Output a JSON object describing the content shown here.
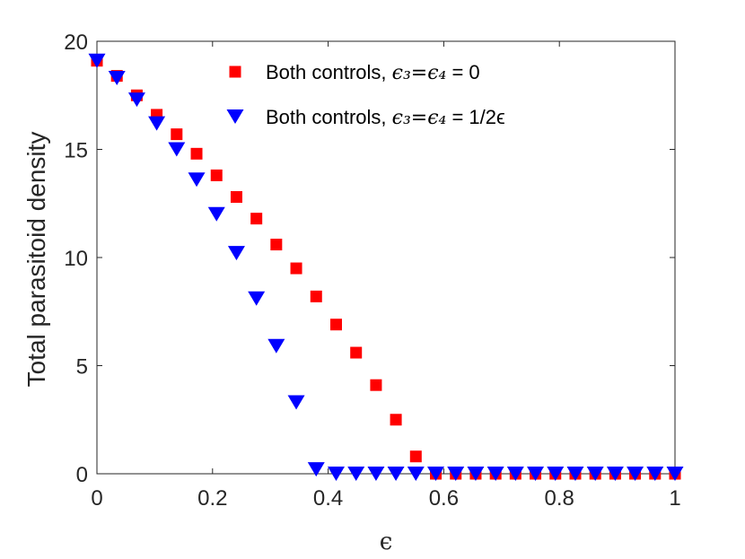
{
  "chart_data": {
    "type": "scatter",
    "xlabel": "ϵ",
    "ylabel": "Total parasitoid density",
    "xlim": [
      0,
      1
    ],
    "ylim": [
      0,
      20
    ],
    "xticks": [
      "0",
      "0.2",
      "0.4",
      "0.6",
      "0.8",
      "1"
    ],
    "yticks": [
      "0",
      "5",
      "10",
      "15",
      "20"
    ],
    "grid": false,
    "legend_position": "top-right",
    "series": [
      {
        "name": "Both controls, ϵ3=ϵ4 = 0",
        "legend_prefix": "Both controls, ",
        "legend_math": "ϵ₃=ϵ₄",
        "legend_suffix": " = 0",
        "marker": "square",
        "color": "#ff0000",
        "x": [
          0,
          0.0345,
          0.069,
          0.1034,
          0.1379,
          0.1724,
          0.2069,
          0.2414,
          0.2759,
          0.3103,
          0.3448,
          0.3793,
          0.4138,
          0.4483,
          0.4828,
          0.5172,
          0.5517,
          0.5862,
          0.6207,
          0.6552,
          0.6897,
          0.7241,
          0.7586,
          0.7931,
          0.8276,
          0.8621,
          0.8966,
          0.931,
          0.9655,
          1.0
        ],
        "y": [
          19.1,
          18.4,
          17.5,
          16.6,
          15.7,
          14.8,
          13.8,
          12.8,
          11.8,
          10.6,
          9.5,
          8.2,
          6.9,
          5.6,
          4.1,
          2.5,
          0.8,
          0,
          0,
          0,
          0,
          0,
          0,
          0,
          0,
          0,
          0,
          0,
          0,
          0
        ]
      },
      {
        "name": "Both controls, ϵ3=ϵ4 = 1/2ϵ",
        "legend_prefix": "Both controls, ",
        "legend_math": "ϵ₃=ϵ₄",
        "legend_suffix": " = 1/2ϵ",
        "marker": "triangle-down",
        "color": "#0000ff",
        "x": [
          0,
          0.0345,
          0.069,
          0.1034,
          0.1379,
          0.1724,
          0.2069,
          0.2414,
          0.2759,
          0.3103,
          0.3448,
          0.3793,
          0.4138,
          0.4483,
          0.4828,
          0.5172,
          0.5517,
          0.5862,
          0.6207,
          0.6552,
          0.6897,
          0.7241,
          0.7586,
          0.7931,
          0.8276,
          0.8621,
          0.8966,
          0.931,
          0.9655,
          1.0
        ],
        "y": [
          19.1,
          18.3,
          17.3,
          16.2,
          15.0,
          13.6,
          12.0,
          10.2,
          8.1,
          5.9,
          3.3,
          0.2,
          0,
          0,
          0,
          0,
          0,
          0,
          0,
          0,
          0,
          0,
          0,
          0,
          0,
          0,
          0,
          0,
          0,
          0
        ]
      }
    ]
  }
}
